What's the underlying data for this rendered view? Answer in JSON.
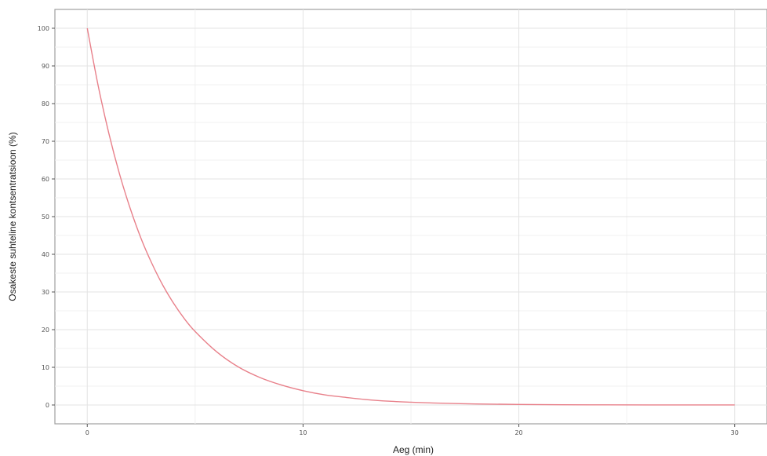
{
  "chart_data": {
    "type": "line",
    "title": "",
    "xlabel": "Aeg (min)",
    "ylabel": "Osakeste suhteline kontsentratsioon (%)",
    "xlim": [
      -1.5,
      31.5
    ],
    "ylim": [
      -5,
      105
    ],
    "x_ticks": [
      0,
      10,
      20,
      30
    ],
    "y_ticks": [
      0,
      10,
      20,
      30,
      40,
      50,
      60,
      70,
      80,
      90,
      100
    ],
    "grid": true,
    "legend": "none",
    "series": [
      {
        "color": "#e8808a",
        "x": [
          0,
          0.5,
          1,
          1.5,
          2,
          2.5,
          3,
          3.5,
          4,
          4.5,
          5,
          6,
          7,
          8,
          9,
          10,
          11,
          12,
          13,
          14,
          15,
          16,
          18,
          20,
          22,
          24,
          26,
          28,
          30
        ],
        "y": [
          100,
          84.9,
          72.1,
          61.2,
          52.0,
          44.1,
          37.5,
          31.8,
          27.0,
          22.9,
          19.5,
          14.1,
          10.1,
          7.3,
          5.3,
          3.8,
          2.7,
          2.0,
          1.4,
          1.0,
          0.74,
          0.53,
          0.28,
          0.14,
          0.07,
          0.04,
          0.02,
          0.01,
          0.005
        ]
      }
    ]
  }
}
